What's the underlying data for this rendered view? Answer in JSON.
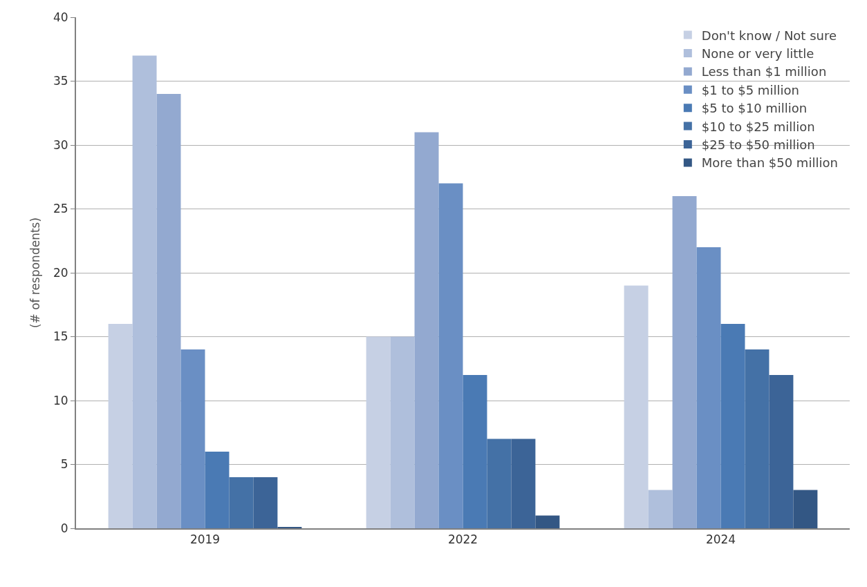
{
  "chart_data": {
    "type": "bar",
    "ylabel": "(# of respondents)",
    "categories": [
      "2019",
      "2022",
      "2024"
    ],
    "series": [
      {
        "name": "Don't know / Not sure",
        "color": "#c6d0e4",
        "values": [
          16,
          15,
          19
        ]
      },
      {
        "name": "None or very little",
        "color": "#afbfdc",
        "values": [
          37,
          15,
          3
        ]
      },
      {
        "name": "Less than $1 million",
        "color": "#93a9d0",
        "values": [
          34,
          31,
          26
        ]
      },
      {
        "name": "$1 to $5 million",
        "color": "#6a8fc4",
        "values": [
          14,
          27,
          22
        ]
      },
      {
        "name": "$5 to $10 million",
        "color": "#4a7ab4",
        "values": [
          6,
          12,
          16
        ]
      },
      {
        "name": "$10 to $25 million",
        "color": "#4471a6",
        "values": [
          4,
          7,
          14
        ]
      },
      {
        "name": "$25 to $50 million",
        "color": "#3c6497",
        "values": [
          4,
          7,
          12
        ]
      },
      {
        "name": "More than $50 million",
        "color": "#335784",
        "values": [
          0.1,
          1,
          3
        ]
      }
    ],
    "ylim": [
      0,
      40
    ],
    "yticks": [
      0,
      5,
      10,
      15,
      20,
      25,
      30,
      35,
      40
    ],
    "grid": "y",
    "legend": "top right"
  }
}
